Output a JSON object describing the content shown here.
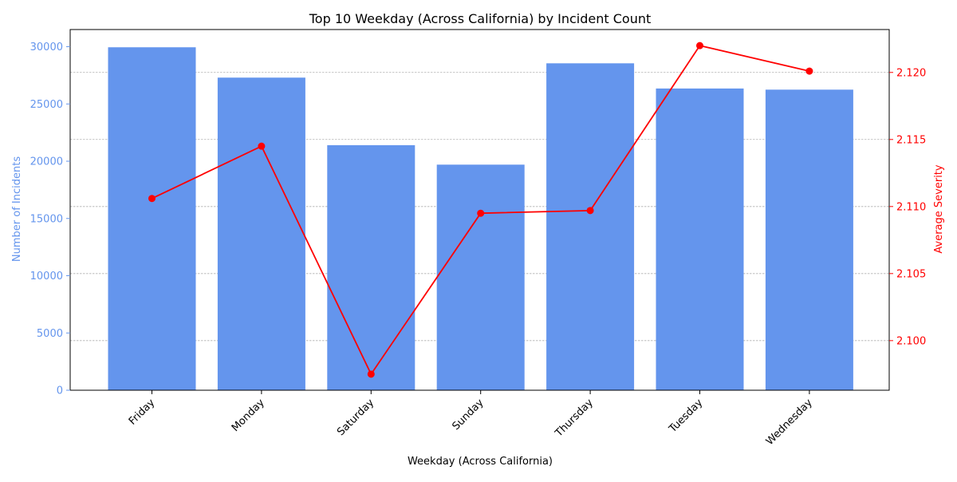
{
  "chart_data": {
    "type": "bar",
    "title": "Top 10 Weekday (Across California) by Incident Count",
    "xlabel": "Weekday (Across California)",
    "categories": [
      "Friday",
      "Monday",
      "Saturday",
      "Sunday",
      "Thursday",
      "Tuesday",
      "Wednesday"
    ],
    "series": [
      {
        "name": "Number of Incidents",
        "kind": "bar",
        "axis": "left",
        "color": "#6495ED",
        "values": [
          29950,
          27300,
          21400,
          19700,
          28550,
          26350,
          26250
        ]
      },
      {
        "name": "Average Severity",
        "kind": "line",
        "axis": "right",
        "color": "#FF0000",
        "values": [
          2.1106,
          2.1145,
          2.0975,
          2.1095,
          2.1097,
          2.122,
          2.1201
        ]
      }
    ],
    "ylabel": "Number of Incidents",
    "ylim": [
      0,
      31500
    ],
    "yticks": [
      0,
      5000,
      10000,
      15000,
      20000,
      25000,
      30000
    ],
    "y2label": "Average Severity",
    "y2lim": [
      2.0963,
      2.1232
    ],
    "y2ticks": [
      "2.100",
      "2.105",
      "2.110",
      "2.115",
      "2.120"
    ],
    "grid": "horizontal, right axis, dashed",
    "legend": "none"
  }
}
